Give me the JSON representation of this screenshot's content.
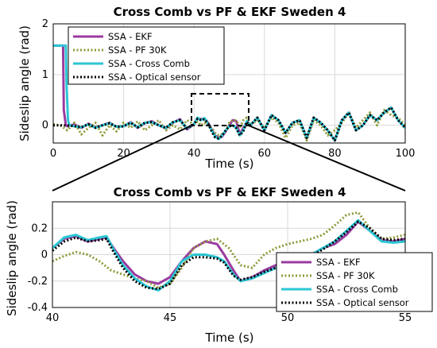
{
  "chart_data": [
    {
      "type": "line",
      "title": "Cross Comb vs PF & EKF Sweden 4",
      "xlabel": "Time (s)",
      "ylabel": "Sideslip angle (rad)",
      "xlim": [
        0,
        100
      ],
      "ylim": [
        -0.35,
        2
      ],
      "xticks": [
        "0",
        "20",
        "40",
        "60",
        "80",
        "100"
      ],
      "yticks": [
        "0",
        "1",
        "2"
      ],
      "grid": true,
      "legend_position": "top-left",
      "series": [
        {
          "name": "SSA - EKF",
          "color": "#9b3aa0",
          "style": "solid",
          "x": [
            0,
            2.8,
            3.0,
            3.6,
            4,
            6,
            8,
            10,
            12,
            14,
            16,
            18,
            20,
            22,
            24,
            26,
            28,
            30,
            32,
            34,
            36,
            38,
            40,
            41,
            42,
            43,
            44,
            45,
            46,
            47,
            48,
            49,
            50,
            51,
            52,
            53,
            54,
            55,
            56,
            58,
            60,
            62,
            64,
            66,
            68,
            70,
            72,
            74,
            76,
            78,
            80,
            82,
            84,
            86,
            88,
            90,
            92,
            94,
            96,
            98,
            100
          ],
          "y": [
            1.57,
            1.57,
            0.3,
            0.0,
            -0.02,
            0.02,
            -0.05,
            0.03,
            -0.04,
            0.0,
            0.05,
            -0.03,
            -0.02,
            0.06,
            -0.05,
            0.04,
            0.08,
            0.0,
            -0.06,
            0.05,
            0.12,
            -0.08,
            0.02,
            0.14,
            0.12,
            0.13,
            0.05,
            -0.08,
            -0.2,
            -0.26,
            -0.22,
            -0.12,
            0.0,
            0.1,
            0.08,
            -0.18,
            -0.05,
            0.05,
            0.0,
            0.15,
            -0.1,
            0.2,
            0.1,
            -0.15,
            0.05,
            0.1,
            -0.25,
            0.15,
            0.05,
            -0.1,
            -0.3,
            0.1,
            0.25,
            -0.1,
            0.0,
            0.2,
            0.1,
            0.25,
            0.35,
            0.1,
            -0.05
          ]
        },
        {
          "name": "SSA - PF 30K",
          "color": "#8f9a3a",
          "style": "dotted",
          "x": [
            0,
            2,
            4,
            6,
            8,
            10,
            12,
            14,
            16,
            18,
            20,
            22,
            24,
            26,
            28,
            30,
            32,
            34,
            36,
            38,
            40,
            41,
            42,
            43,
            44,
            45,
            46,
            47,
            48,
            49,
            50,
            51,
            52,
            53,
            54,
            55,
            56,
            58,
            60,
            62,
            64,
            66,
            68,
            70,
            72,
            74,
            76,
            78,
            80,
            82,
            84,
            86,
            88,
            90,
            92,
            94,
            96,
            98,
            100
          ],
          "y": [
            0.02,
            0.0,
            -0.1,
            0.05,
            -0.18,
            -0.05,
            0.05,
            -0.2,
            0.0,
            -0.12,
            0.05,
            -0.05,
            0.08,
            -0.1,
            0.0,
            0.1,
            -0.1,
            0.0,
            -0.08,
            0.1,
            0.02,
            0.07,
            0.0,
            0.05,
            0.0,
            -0.05,
            -0.15,
            -0.2,
            -0.18,
            -0.12,
            0.05,
            0.1,
            0.1,
            -0.05,
            0.1,
            0.15,
            0.0,
            0.1,
            -0.05,
            0.15,
            0.05,
            -0.25,
            0.0,
            0.05,
            -0.3,
            0.1,
            0.0,
            -0.2,
            -0.1,
            0.05,
            0.25,
            -0.05,
            0.1,
            0.25,
            0.0,
            0.3,
            0.2,
            0.15,
            0.0
          ]
        },
        {
          "name": "SSA - Cross Comb",
          "color": "#2cc6d4",
          "style": "solid",
          "x": [
            0,
            3.6,
            3.8,
            4.2,
            4.6,
            6,
            8,
            10,
            12,
            14,
            16,
            18,
            20,
            22,
            24,
            26,
            28,
            30,
            32,
            34,
            36,
            38,
            40,
            41,
            42,
            43,
            44,
            45,
            46,
            47,
            48,
            49,
            50,
            51,
            52,
            53,
            54,
            55,
            56,
            58,
            60,
            62,
            64,
            66,
            68,
            70,
            72,
            74,
            76,
            78,
            80,
            82,
            84,
            86,
            88,
            90,
            92,
            94,
            96,
            98,
            100
          ],
          "y": [
            1.57,
            1.57,
            0.8,
            0.1,
            0.0,
            -0.02,
            -0.04,
            0.02,
            -0.05,
            0.0,
            0.04,
            -0.03,
            -0.02,
            0.05,
            -0.04,
            0.05,
            0.06,
            0.0,
            -0.05,
            0.06,
            0.1,
            -0.06,
            0.02,
            0.15,
            0.1,
            0.14,
            0.03,
            -0.1,
            -0.22,
            -0.27,
            -0.2,
            -0.1,
            -0.02,
            0.0,
            -0.05,
            -0.2,
            -0.1,
            0.08,
            0.0,
            0.15,
            -0.1,
            0.2,
            0.1,
            -0.15,
            0.05,
            0.1,
            -0.25,
            0.15,
            0.05,
            -0.1,
            -0.3,
            0.1,
            0.25,
            -0.1,
            0.0,
            0.2,
            0.1,
            0.25,
            0.35,
            0.1,
            -0.05
          ]
        },
        {
          "name": "SSA - Optical sensor",
          "color": "#000000",
          "style": "dotted",
          "x": [
            0,
            2,
            4,
            6,
            8,
            10,
            12,
            14,
            16,
            18,
            20,
            22,
            24,
            26,
            28,
            30,
            32,
            34,
            36,
            38,
            40,
            41,
            42,
            43,
            44,
            45,
            46,
            47,
            48,
            49,
            50,
            51,
            52,
            53,
            54,
            55,
            56,
            58,
            60,
            62,
            64,
            66,
            68,
            70,
            72,
            74,
            76,
            78,
            80,
            82,
            84,
            86,
            88,
            90,
            92,
            94,
            96,
            98,
            100
          ],
          "y": [
            0.0,
            0.0,
            0.0,
            -0.02,
            -0.04,
            0.02,
            -0.05,
            0.0,
            0.04,
            -0.03,
            -0.02,
            0.05,
            -0.04,
            0.05,
            0.06,
            0.0,
            -0.05,
            0.06,
            0.1,
            -0.06,
            0.02,
            0.13,
            0.1,
            0.12,
            0.03,
            -0.12,
            -0.24,
            -0.26,
            -0.2,
            -0.1,
            -0.02,
            0.0,
            -0.06,
            -0.2,
            -0.12,
            0.07,
            0.0,
            0.15,
            -0.1,
            0.2,
            0.1,
            -0.15,
            0.05,
            0.1,
            -0.25,
            0.15,
            0.05,
            -0.1,
            -0.3,
            0.1,
            0.25,
            -0.1,
            0.0,
            0.2,
            0.1,
            0.25,
            0.35,
            0.1,
            -0.05
          ]
        }
      ]
    },
    {
      "type": "line",
      "title": "Cross Comb vs PF & EKF Sweden 4",
      "xlabel": "Time (s)",
      "ylabel": "Sideslip angle (rad)",
      "xlim": [
        40,
        55
      ],
      "ylim": [
        -0.4,
        0.4
      ],
      "xticks": [
        "40",
        "45",
        "50",
        "55"
      ],
      "yticks": [
        "-0.4",
        "-0.2",
        "0",
        "0.2"
      ],
      "grid": true,
      "legend_position": "bottom-right",
      "series": [
        {
          "name": "SSA - EKF",
          "color": "#9b3aa0",
          "style": "solid",
          "x": [
            40,
            40.5,
            41,
            41.5,
            42,
            42.3,
            42.6,
            43,
            43.5,
            44,
            44.5,
            45,
            45.5,
            46,
            46.5,
            47,
            47.3,
            47.7,
            48,
            48.5,
            49,
            49.5,
            50,
            50.5,
            51,
            51.5,
            52,
            52.5,
            53,
            53.5,
            54,
            54.5,
            55
          ],
          "y": [
            0.05,
            0.12,
            0.14,
            0.1,
            0.12,
            0.13,
            0.05,
            -0.05,
            -0.15,
            -0.2,
            -0.22,
            -0.17,
            -0.05,
            0.05,
            0.1,
            0.08,
            0.0,
            -0.12,
            -0.2,
            -0.17,
            -0.12,
            -0.08,
            -0.05,
            -0.05,
            0.0,
            0.05,
            0.08,
            0.15,
            0.25,
            0.18,
            0.11,
            0.1,
            0.12
          ]
        },
        {
          "name": "SSA - PF 30K",
          "color": "#8f9a3a",
          "style": "dotted",
          "x": [
            40,
            40.5,
            41,
            41.5,
            42,
            42.5,
            43,
            43.5,
            44,
            44.5,
            45,
            45.5,
            46,
            46.5,
            47,
            47.5,
            48,
            48.5,
            49,
            49.5,
            50,
            50.5,
            51,
            51.5,
            52,
            52.5,
            53,
            53.5,
            54,
            54.5,
            55
          ],
          "y": [
            -0.05,
            -0.01,
            0.02,
            0.0,
            -0.05,
            -0.12,
            -0.15,
            -0.18,
            -0.2,
            -0.25,
            -0.22,
            -0.1,
            0.05,
            0.1,
            0.12,
            0.05,
            -0.08,
            -0.1,
            0.0,
            0.05,
            0.08,
            0.1,
            0.12,
            0.15,
            0.22,
            0.3,
            0.32,
            0.2,
            0.12,
            0.13,
            0.15
          ]
        },
        {
          "name": "SSA - Cross Comb",
          "color": "#2cc6d4",
          "style": "solid",
          "x": [
            40,
            40.5,
            41,
            41.5,
            42,
            42.3,
            42.6,
            43,
            43.5,
            44,
            44.5,
            45,
            45.5,
            46,
            46.5,
            47,
            47.3,
            47.7,
            48,
            48.5,
            49,
            49.5,
            50,
            50.5,
            51,
            51.5,
            52,
            52.5,
            53,
            53.5,
            54,
            54.5,
            55
          ],
          "y": [
            0.05,
            0.13,
            0.15,
            0.11,
            0.13,
            0.14,
            0.04,
            -0.08,
            -0.18,
            -0.24,
            -0.27,
            -0.2,
            -0.05,
            0.0,
            0.0,
            -0.02,
            -0.05,
            -0.15,
            -0.2,
            -0.18,
            -0.14,
            -0.1,
            -0.06,
            -0.03,
            0.0,
            0.05,
            0.1,
            0.18,
            0.26,
            0.18,
            0.1,
            0.09,
            0.1
          ]
        },
        {
          "name": "SSA - Optical sensor",
          "color": "#000000",
          "style": "dotted",
          "x": [
            40,
            40.5,
            41,
            41.5,
            42,
            42.3,
            42.6,
            43,
            43.5,
            44,
            44.5,
            45,
            45.5,
            46,
            46.5,
            47,
            47.3,
            47.7,
            48,
            48.5,
            49,
            49.5,
            50,
            50.5,
            51,
            51.5,
            52,
            52.5,
            53,
            53.5,
            54,
            54.5,
            55
          ],
          "y": [
            0.03,
            0.1,
            0.13,
            0.1,
            0.11,
            0.12,
            0.02,
            -0.1,
            -0.2,
            -0.25,
            -0.26,
            -0.22,
            -0.08,
            -0.02,
            -0.02,
            -0.03,
            -0.06,
            -0.16,
            -0.19,
            -0.17,
            -0.13,
            -0.1,
            -0.06,
            -0.04,
            -0.01,
            0.04,
            0.1,
            0.17,
            0.25,
            0.2,
            0.12,
            0.11,
            0.12
          ]
        }
      ]
    }
  ]
}
